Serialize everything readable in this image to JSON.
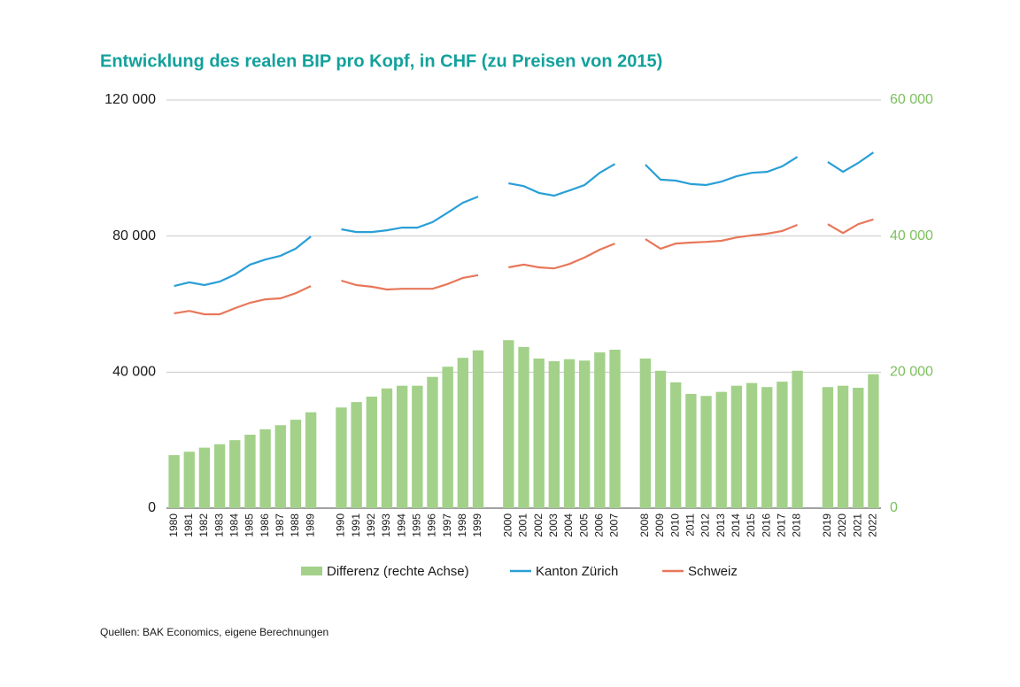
{
  "chart_data": {
    "type": "bar-line",
    "title": "Entwicklung des realen BIP pro Kopf, in CHF (zu Preisen von 2015)",
    "source": "Quellen: BAK Economics, eigene Berechnungen",
    "categories": [
      "1980",
      "1981",
      "1982",
      "1983",
      "1984",
      "1985",
      "1986",
      "1987",
      "1988",
      "1989",
      null,
      "1990",
      "1991",
      "1992",
      "1993",
      "1994",
      "1995",
      "1996",
      "1997",
      "1998",
      "1999",
      null,
      "2000",
      "2001",
      "2002",
      "2003",
      "2004",
      "2005",
      "2006",
      "2007",
      null,
      "2008",
      "2009",
      "2010",
      "2011",
      "2012",
      "2013",
      "2014",
      "2015",
      "2016",
      "2017",
      "2018",
      null,
      "2019",
      "2020",
      "2021",
      "2022"
    ],
    "series": [
      {
        "name": "Differenz (rechte Achse)",
        "type": "bar",
        "axis": "y2",
        "color": "#a3d18a",
        "values": [
          7800,
          8300,
          8900,
          9400,
          10000,
          10800,
          11600,
          12200,
          13000,
          14100,
          null,
          14800,
          15600,
          16400,
          17600,
          18000,
          18000,
          19300,
          20800,
          22100,
          23200,
          null,
          24700,
          23700,
          22000,
          21600,
          21900,
          21700,
          22900,
          23300,
          null,
          22000,
          20200,
          18500,
          16800,
          16500,
          17100,
          18000,
          18400,
          17800,
          18600,
          20200,
          null,
          17800,
          18000,
          17700,
          19700
        ]
      },
      {
        "name": "Kanton Zürich",
        "type": "line",
        "color": "#2a9fd6",
        "values": [
          65300,
          66400,
          65600,
          66600,
          68700,
          71600,
          73100,
          74200,
          76300,
          79900,
          null,
          82000,
          81200,
          81200,
          81700,
          82500,
          82500,
          84100,
          86900,
          89800,
          91600,
          null,
          95500,
          94700,
          92700,
          91900,
          93400,
          95000,
          98600,
          101200,
          null,
          101000,
          96600,
          96300,
          95300,
          95000,
          96000,
          97600,
          98600,
          98900,
          100500,
          103300,
          null,
          101800,
          98900,
          101500,
          104600
        ]
      },
      {
        "name": "Schweiz",
        "type": "line",
        "color": "#e8775a",
        "values": [
          57300,
          58000,
          57000,
          57000,
          58800,
          60400,
          61400,
          61700,
          63200,
          65300,
          null,
          66900,
          65600,
          65100,
          64300,
          64500,
          64500,
          64500,
          65900,
          67700,
          68500,
          null,
          70800,
          71600,
          70800,
          70500,
          71800,
          73700,
          76000,
          77800,
          null,
          79100,
          76300,
          77800,
          78100,
          78300,
          78600,
          79600,
          80200,
          80700,
          81500,
          83300,
          null,
          83500,
          80900,
          83500,
          84900
        ]
      }
    ],
    "ylim": [
      0,
      120000
    ],
    "yticks": [
      0,
      {
        "value": 40000,
        "label": "40 000"
      },
      {
        "value": 80000,
        "label": "80 000"
      },
      {
        "value": 120000,
        "label": "120 000"
      }
    ],
    "y2lim": [
      0,
      60000
    ],
    "y2ticks": [
      0,
      {
        "value": 20000,
        "label": "20 000"
      },
      {
        "value": 40000,
        "label": "40 000"
      },
      {
        "value": 60000,
        "label": "60 000"
      }
    ],
    "y2color": "#7cbf5c",
    "title_color": "#13a19c",
    "grid": true
  }
}
